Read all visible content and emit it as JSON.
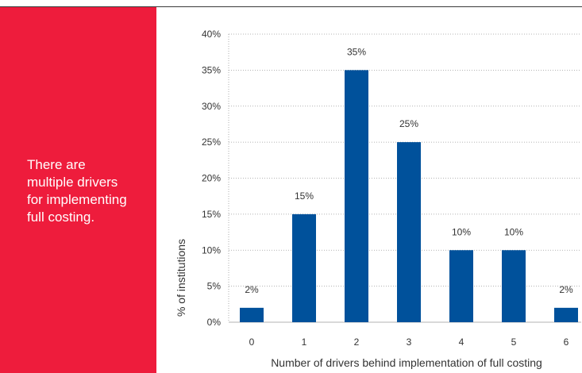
{
  "colors": {
    "panel_bg": "#ee1c3c",
    "bar": "#00519b",
    "grid": "#9a9a9a",
    "text": "#333333"
  },
  "side_panel": {
    "text": "There are multiple drivers for implementing full costing."
  },
  "chart_data": {
    "type": "bar",
    "categories": [
      "0",
      "1",
      "2",
      "3",
      "4",
      "5",
      "6"
    ],
    "values": [
      2,
      15,
      35,
      25,
      10,
      10,
      2
    ],
    "data_labels": [
      "2%",
      "15%",
      "35%",
      "25%",
      "10%",
      "10%",
      "2%"
    ],
    "ylim": [
      0,
      40
    ],
    "yticks": [
      0,
      5,
      10,
      15,
      20,
      25,
      30,
      35,
      40
    ],
    "ytick_labels": [
      "0%",
      "5%",
      "10%",
      "15%",
      "20%",
      "25%",
      "30%",
      "35%",
      "40%"
    ],
    "xlabel": "Number of drivers behind implementation of full costing",
    "ylabel": "% of institutions",
    "grid": true,
    "grid_style": "dotted"
  }
}
